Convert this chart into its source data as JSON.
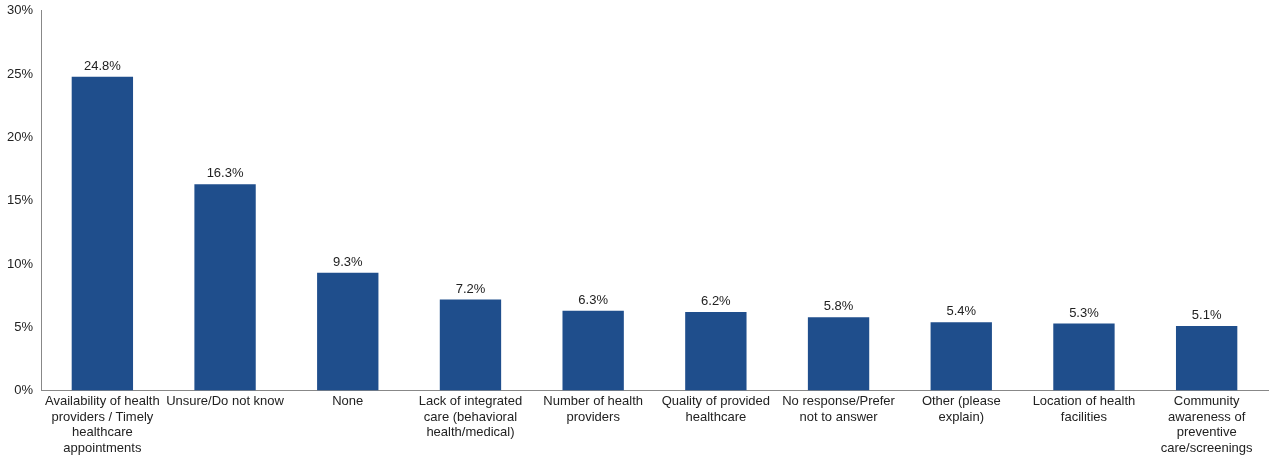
{
  "chart_data": {
    "type": "bar",
    "categories": [
      "Availability of health providers / Timely healthcare appointments",
      "Unsure/Do not know",
      "None",
      "Lack of integrated care (behavioral health/medical)",
      "Number of health providers",
      "Quality of provided healthcare",
      "No response/Prefer not to answer",
      "Other (please explain)",
      "Location of health facilities",
      "Community awareness of preventive care/screenings"
    ],
    "values": [
      24.8,
      16.3,
      9.3,
      7.2,
      6.3,
      6.2,
      5.8,
      5.4,
      5.3,
      5.1
    ],
    "value_labels": [
      "24.8%",
      "16.3%",
      "9.3%",
      "7.2%",
      "6.3%",
      "6.2%",
      "5.8%",
      "5.4%",
      "5.3%",
      "5.1%"
    ],
    "color": "#1f4e8c",
    "ylim": [
      0,
      30
    ],
    "yticks": [
      {
        "value": 0,
        "label": "0%"
      },
      {
        "value": 5,
        "label": "5%"
      },
      {
        "value": 10,
        "label": "10%"
      },
      {
        "value": 15,
        "label": "15%"
      },
      {
        "value": 20,
        "label": "20%"
      },
      {
        "value": 25,
        "label": "25%"
      },
      {
        "value": 30,
        "label": "30%"
      }
    ],
    "grid": false,
    "legend": false
  }
}
